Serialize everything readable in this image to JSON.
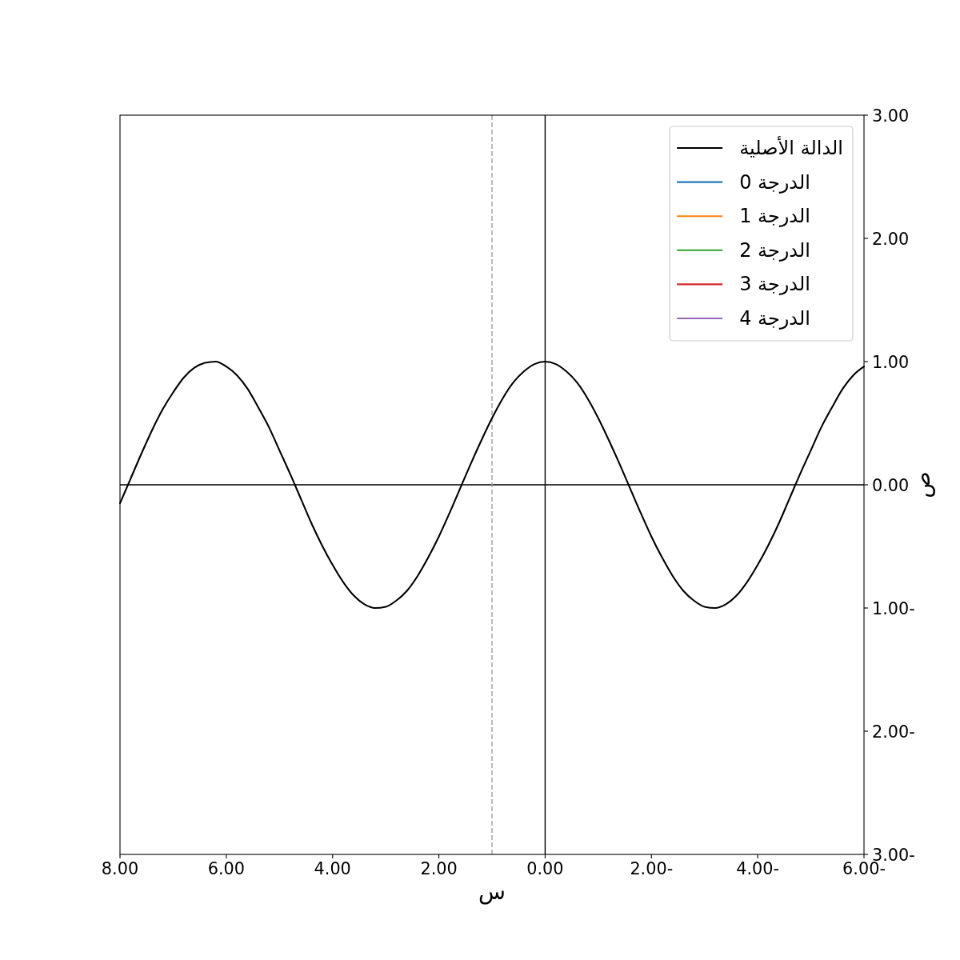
{
  "chart_data": {
    "type": "line",
    "xlabel": "س",
    "ylabel": "ص",
    "xlim": [
      8,
      -6
    ],
    "ylim": [
      -3,
      3
    ],
    "xticks": [
      {
        "value": 8,
        "label": "8.00"
      },
      {
        "value": 6,
        "label": "6.00"
      },
      {
        "value": 4,
        "label": "4.00"
      },
      {
        "value": 2,
        "label": "2.00"
      },
      {
        "value": 0,
        "label": "0.00"
      },
      {
        "value": -2,
        "label": "2.00-"
      },
      {
        "value": -4,
        "label": "4.00-"
      },
      {
        "value": -6,
        "label": "6.00-"
      }
    ],
    "yticks": [
      {
        "value": 3,
        "label": "3.00"
      },
      {
        "value": 2,
        "label": "2.00"
      },
      {
        "value": 1,
        "label": "1.00"
      },
      {
        "value": 0,
        "label": "0.00"
      },
      {
        "value": -1,
        "label": "1.00-"
      },
      {
        "value": -2,
        "label": "2.00-"
      },
      {
        "value": -3,
        "label": "3.00-"
      }
    ],
    "legend": "top right",
    "line_style": "solid",
    "ref_lines": [
      {
        "axis": "x",
        "value": 0,
        "color": "#000000",
        "line_style": "solid"
      },
      {
        "axis": "y",
        "value": 0,
        "color": "#000000",
        "line_style": "solid"
      },
      {
        "axis": "x",
        "value": 1,
        "color": "#a0a0a0",
        "line_style": "dashed"
      }
    ],
    "series": [
      {
        "name": "الدالة الأصلية",
        "color": "#000000",
        "x": [
          -6,
          -5.8,
          -5.6,
          -5.4,
          -5.2,
          -5,
          -4.8,
          -4.6,
          -4.4,
          -4.2,
          -4,
          -3.8,
          -3.6,
          -3.4,
          -3.2,
          -3,
          -2.8,
          -2.6,
          -2.4,
          -2.2,
          -2,
          -1.8,
          -1.6,
          -1.4,
          -1.2,
          -1,
          -0.8,
          -0.6,
          -0.4,
          -0.2,
          0,
          0.2,
          0.4,
          0.6,
          0.8,
          1,
          1.2,
          1.4,
          1.6,
          1.8,
          2,
          2.2,
          2.4,
          2.6,
          2.8,
          3,
          3.2,
          3.4,
          3.6,
          3.8,
          4,
          4.2,
          4.4,
          4.6,
          4.8,
          5,
          5.2,
          5.4,
          5.6,
          5.8,
          6,
          6.2,
          6.4,
          6.6,
          6.8,
          7,
          7.2,
          7.4,
          7.6,
          7.8,
          8
        ],
        "values": [
          0.96,
          0.89,
          0.78,
          0.63,
          0.47,
          0.28,
          0.09,
          -0.11,
          -0.31,
          -0.49,
          -0.65,
          -0.79,
          -0.9,
          -0.97,
          -1.0,
          -0.99,
          -0.94,
          -0.86,
          -0.74,
          -0.59,
          -0.42,
          -0.23,
          -0.03,
          0.17,
          0.36,
          0.54,
          0.7,
          0.83,
          0.92,
          0.98,
          1.0,
          0.98,
          0.92,
          0.83,
          0.7,
          0.54,
          0.36,
          0.17,
          -0.03,
          -0.23,
          -0.42,
          -0.59,
          -0.74,
          -0.86,
          -0.94,
          -0.99,
          -1.0,
          -0.97,
          -0.9,
          -0.79,
          -0.65,
          -0.49,
          -0.31,
          -0.11,
          0.09,
          0.28,
          0.47,
          0.63,
          0.78,
          0.89,
          0.96,
          1.0,
          0.99,
          0.95,
          0.87,
          0.75,
          0.61,
          0.44,
          0.25,
          0.05,
          -0.15
        ]
      },
      {
        "name": "الدرجة 0",
        "color": "#1f77b4"
      },
      {
        "name": "الدرجة 1",
        "color": "#ff7f0e"
      },
      {
        "name": "الدرجة 2",
        "color": "#2ca02c"
      },
      {
        "name": "الدرجة 3",
        "color": "#d62728"
      },
      {
        "name": "الدرجة 4",
        "color": "#9467bd"
      }
    ]
  }
}
